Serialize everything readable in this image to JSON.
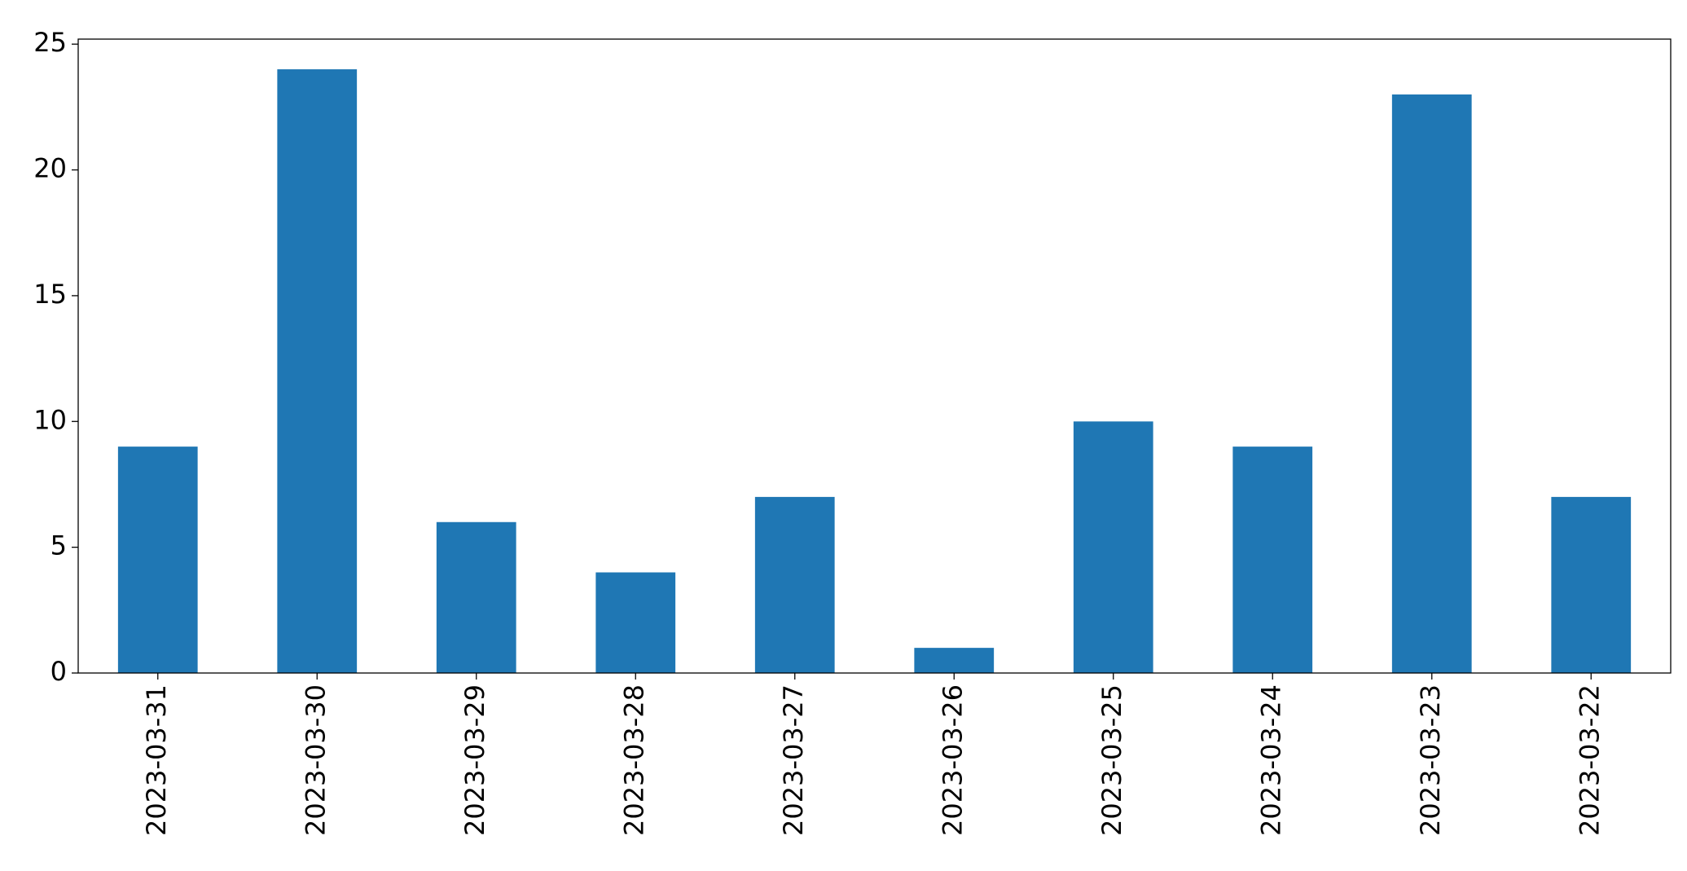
{
  "chart_data": {
    "type": "bar",
    "categories": [
      "2023-03-31",
      "2023-03-30",
      "2023-03-29",
      "2023-03-28",
      "2023-03-27",
      "2023-03-26",
      "2023-03-25",
      "2023-03-24",
      "2023-03-23",
      "2023-03-22"
    ],
    "values": [
      9,
      24,
      6,
      4,
      7,
      1,
      10,
      9,
      23,
      7
    ],
    "color": "#1f77b4",
    "ylim": [
      0,
      25.2
    ],
    "yticks": [
      0,
      5,
      10,
      15,
      20,
      25
    ],
    "grid": false
  }
}
